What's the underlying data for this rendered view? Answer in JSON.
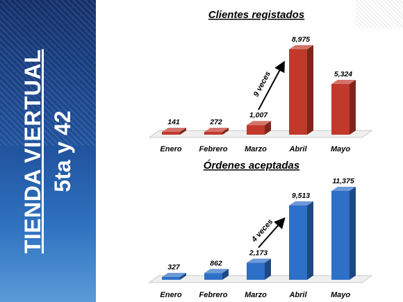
{
  "side_title": {
    "main": "TIENDA VIERTUAL",
    "sub": "5ta y 42"
  },
  "chart_data": [
    {
      "type": "bar",
      "title": "Clientes registados",
      "categories": [
        "Enero",
        "Febrero",
        "Marzo",
        "Abril",
        "Mayo"
      ],
      "values": [
        141,
        272,
        1007,
        8975,
        5324
      ],
      "value_labels": [
        "141",
        "272",
        "1,007",
        "8,975",
        "5,324"
      ],
      "ylim": [
        0,
        8975
      ],
      "color": "#c0392b",
      "annotation": {
        "text": "9 veces",
        "from_category": "Marzo",
        "to_category": "Abril"
      },
      "xlabel": "",
      "ylabel": "",
      "grid": false,
      "legend": "none"
    },
    {
      "type": "bar",
      "title": "Órdenes aceptadas",
      "categories": [
        "Enero",
        "Febrero",
        "Marzo",
        "Abril",
        "Mayo"
      ],
      "values": [
        327,
        862,
        2173,
        9513,
        11375
      ],
      "value_labels": [
        "327",
        "862",
        "2,173",
        "9,513",
        "11,375"
      ],
      "ylim": [
        0,
        11375
      ],
      "color": "#2e6fc7",
      "annotation": {
        "text": "4 veces",
        "from_category": "Marzo",
        "to_category": "Abril"
      },
      "xlabel": "",
      "ylabel": "",
      "grid": false,
      "legend": "none"
    }
  ]
}
